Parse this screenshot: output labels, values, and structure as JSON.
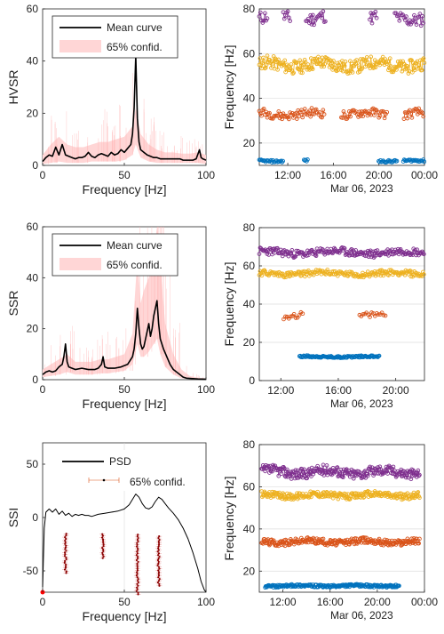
{
  "figure": {
    "date_label": "Mar 06, 2023",
    "colors": {
      "blue": "#0072BD",
      "orange": "#D95319",
      "yellow": "#EDB120",
      "purple": "#7E2F8E",
      "band": "#FFD6D6",
      "spike": "#FFB3B3",
      "dark_red": "#8B0000",
      "black": "#000000"
    }
  },
  "chart_data": [
    {
      "id": "hvsr",
      "type": "line",
      "ylabel": "HVSR",
      "xlabel": "Frequency [Hz]",
      "xlim": [
        0,
        100
      ],
      "ylim": [
        0,
        60
      ],
      "xticks": [
        0,
        50,
        100
      ],
      "yticks": [
        0,
        20,
        40,
        60
      ],
      "legend": {
        "placement": "top-left",
        "entries": [
          "Mean curve",
          "65% confid."
        ]
      },
      "series": [
        {
          "name": "Mean curve",
          "x": [
            0,
            2,
            4,
            6,
            8,
            10,
            12,
            14,
            16,
            18,
            20,
            22,
            24,
            26,
            28,
            30,
            32,
            34,
            36,
            38,
            40,
            42,
            44,
            46,
            48,
            50,
            52,
            54,
            55,
            56,
            57,
            58,
            59,
            60,
            62,
            64,
            66,
            68,
            70,
            72,
            74,
            76,
            78,
            80,
            82,
            84,
            86,
            88,
            90,
            92,
            94,
            96,
            97,
            98,
            100
          ],
          "y": [
            1.5,
            3,
            4,
            3.5,
            7,
            4,
            8,
            4,
            3.5,
            3,
            2.5,
            3,
            3,
            3.5,
            5,
            3.5,
            3,
            4,
            4.5,
            4,
            3.5,
            5,
            4,
            4.5,
            6,
            5,
            6.5,
            8,
            12,
            22,
            42,
            18,
            9,
            6,
            5,
            4,
            3.5,
            3,
            3,
            2.5,
            2.5,
            2.5,
            2.5,
            2.5,
            2.5,
            2.5,
            2,
            2,
            2,
            2,
            2.5,
            6,
            3,
            2.5,
            2
          ]
        },
        {
          "name": "65% confid.",
          "x": [
            0,
            5,
            10,
            15,
            20,
            25,
            30,
            35,
            40,
            45,
            50,
            55,
            57,
            60,
            65,
            70,
            75,
            80,
            85,
            90,
            95,
            100
          ],
          "upper": [
            4,
            8,
            11,
            8,
            7,
            7,
            8,
            9,
            9,
            10,
            11,
            15,
            22,
            12,
            8,
            6,
            5,
            5,
            4.5,
            4.5,
            5,
            4
          ],
          "lower": [
            0.5,
            1,
            1.5,
            1,
            1,
            1,
            1.5,
            1.5,
            1.5,
            1.5,
            2,
            4,
            8,
            3,
            1.5,
            1,
            1,
            1,
            1,
            1,
            1,
            0.5
          ]
        }
      ]
    },
    {
      "id": "ssr",
      "type": "line",
      "ylabel": "SSR",
      "xlabel": "Frequency [Hz]",
      "xlim": [
        0,
        100
      ],
      "ylim": [
        0,
        60
      ],
      "xticks": [
        0,
        50,
        100
      ],
      "yticks": [
        0,
        20,
        40,
        60
      ],
      "legend": {
        "placement": "top-left",
        "entries": [
          "Mean curve",
          "65% confid."
        ]
      },
      "series": [
        {
          "name": "Mean curve",
          "x": [
            0,
            2,
            4,
            6,
            8,
            10,
            12,
            13,
            14,
            15,
            16,
            18,
            20,
            24,
            28,
            32,
            34,
            36,
            37,
            38,
            40,
            44,
            48,
            52,
            55,
            56,
            57,
            58,
            59,
            60,
            61,
            62,
            63,
            64,
            65,
            66,
            67,
            68,
            69,
            70,
            71,
            72,
            74,
            76,
            78,
            80,
            82,
            84,
            86,
            88,
            90,
            95,
            100
          ],
          "y": [
            2,
            3,
            3.5,
            3,
            3.5,
            5,
            6,
            9,
            14,
            7,
            5,
            4.5,
            4,
            4.5,
            4,
            4,
            4.5,
            6,
            9,
            5,
            4.5,
            4.5,
            5,
            6,
            9,
            12,
            18,
            28,
            20,
            14,
            12,
            13,
            16,
            19,
            22,
            17,
            20,
            25,
            28,
            31,
            22,
            16,
            12,
            9,
            6,
            4,
            3,
            2,
            1,
            0.6,
            0.5,
            0.3,
            0.2
          ]
        },
        {
          "name": "65% confid.",
          "x": [
            0,
            5,
            10,
            15,
            20,
            25,
            30,
            35,
            40,
            45,
            50,
            55,
            58,
            60,
            62,
            65,
            68,
            70,
            72,
            75,
            80,
            85,
            90,
            95,
            100
          ],
          "upper": [
            4,
            6,
            8,
            10,
            7,
            7,
            7,
            8,
            8,
            9,
            10,
            18,
            48,
            30,
            35,
            40,
            50,
            60,
            45,
            22,
            10,
            4,
            1.5,
            0.8,
            0.5
          ],
          "lower": [
            1,
            1.5,
            2,
            3,
            2,
            2,
            2,
            2.5,
            2.5,
            3,
            3.5,
            6,
            14,
            9,
            9,
            11,
            14,
            16,
            10,
            5,
            2,
            0.5,
            0.2,
            0.1,
            0.1
          ]
        }
      ]
    },
    {
      "id": "ssi",
      "type": "line",
      "ylabel": "SSI",
      "xlabel": "Frequency [Hz]",
      "xlim": [
        0,
        100
      ],
      "ylim": [
        -70,
        70
      ],
      "xticks": [
        0,
        50,
        100
      ],
      "yticks": [
        -50,
        0,
        50
      ],
      "legend": {
        "placement": "top-center",
        "entries": [
          "PSD",
          "65% confid."
        ]
      },
      "series": [
        {
          "name": "PSD",
          "x": [
            0,
            1,
            2,
            4,
            6,
            8,
            10,
            12,
            14,
            16,
            18,
            20,
            22,
            24,
            26,
            28,
            30,
            34,
            38,
            42,
            46,
            50,
            53,
            55,
            57,
            59,
            61,
            63,
            65,
            67,
            69,
            71,
            73,
            75,
            77,
            80,
            83,
            86,
            89,
            92,
            95,
            97,
            99,
            100
          ],
          "y": [
            -65,
            -10,
            5,
            8,
            5,
            8,
            3,
            6,
            2,
            4,
            1,
            3,
            2,
            3,
            2,
            2,
            1,
            3,
            4,
            5,
            6,
            8,
            12,
            17,
            22,
            19,
            13,
            9,
            8,
            10,
            15,
            19,
            17,
            13,
            9,
            4,
            -2,
            -10,
            -20,
            -33,
            -48,
            -60,
            -68,
            -70
          ]
        },
        {
          "name": "65% confid.",
          "columns": [
            {
              "x": 14,
              "ymin": -52,
              "ymax": -15
            },
            {
              "x": 37,
              "ymin": -38,
              "ymax": -15
            },
            {
              "x": 58,
              "ymin": -72,
              "ymax": -15
            },
            {
              "x": 71,
              "ymin": -64,
              "ymax": -16
            }
          ]
        }
      ]
    },
    {
      "id": "freq1",
      "type": "scatter",
      "ylabel": "Frequency [Hz]",
      "ylim": [
        10,
        80
      ],
      "yticks": [
        20,
        40,
        60,
        80
      ],
      "xlim_hours": [
        9.5,
        24
      ],
      "xticklabels": [
        {
          "hour": 12,
          "label": "12:00"
        },
        {
          "hour": 16,
          "label": "16:00"
        },
        {
          "hour": 20,
          "label": "20:00"
        },
        {
          "hour": 24,
          "label": "00:00"
        }
      ],
      "grid": "horizontal",
      "series": [
        {
          "color": "purple",
          "start": 9.5,
          "end": 24,
          "base": 76,
          "amp": 3,
          "step": 0.1,
          "gaps": [
            [
              10.2,
              11.5
            ],
            [
              12.2,
              13.5
            ],
            [
              15.3,
              19.2
            ],
            [
              19.9,
              21.4
            ]
          ]
        },
        {
          "color": "yellow",
          "start": 9.5,
          "end": 24,
          "base": 55,
          "amp": 3,
          "step": 0.07,
          "gaps": []
        },
        {
          "color": "orange",
          "start": 9.5,
          "end": 24,
          "base": 33,
          "amp": 2,
          "step": 0.1,
          "gaps": [
            [
              15.2,
              16.6
            ],
            [
              20.8,
              22.2
            ]
          ]
        },
        {
          "color": "blue",
          "start": 9.5,
          "end": 24,
          "base": 12,
          "amp": 0.5,
          "step": 0.08,
          "gaps": [
            [
              11.6,
              13.4
            ],
            [
              13.8,
              19.9
            ],
            [
              21.6,
              22.1
            ]
          ]
        }
      ]
    },
    {
      "id": "freq2",
      "type": "scatter",
      "ylabel": "Frequency [Hz]",
      "ylim": [
        0,
        80
      ],
      "yticks": [
        0,
        20,
        40,
        60,
        80
      ],
      "xlim_hours": [
        10.5,
        22
      ],
      "xticklabels": [
        {
          "hour": 12,
          "label": "12:00"
        },
        {
          "hour": 16,
          "label": "16:00"
        },
        {
          "hour": 20,
          "label": "20:00"
        }
      ],
      "grid": "horizontal",
      "series": [
        {
          "color": "purple",
          "start": 10.5,
          "end": 22,
          "base": 67,
          "amp": 2,
          "step": 0.06,
          "gaps": []
        },
        {
          "color": "yellow",
          "start": 10.5,
          "end": 22,
          "base": 56,
          "amp": 1.5,
          "step": 0.06,
          "gaps": []
        },
        {
          "color": "orange",
          "start": 12.2,
          "end": 19.3,
          "base": 34,
          "amp": 1.5,
          "step": 0.12,
          "gaps": [
            [
              13.6,
              17.4
            ]
          ]
        },
        {
          "color": "blue",
          "start": 13.3,
          "end": 18.9,
          "base": 12.5,
          "amp": 0.5,
          "step": 0.05,
          "gaps": []
        }
      ]
    },
    {
      "id": "freq3",
      "type": "scatter",
      "ylabel": "Frequency [Hz]",
      "ylim": [
        10,
        80
      ],
      "yticks": [
        20,
        40,
        60,
        80
      ],
      "xlim_hours": [
        10,
        24
      ],
      "xticklabels": [
        {
          "hour": 12,
          "label": "12:00"
        },
        {
          "hour": 16,
          "label": "16:00"
        },
        {
          "hour": 20,
          "label": "20:00"
        },
        {
          "hour": 24,
          "label": "00:00"
        }
      ],
      "grid": "horizontal",
      "series": [
        {
          "color": "purple",
          "start": 10.2,
          "end": 23.6,
          "base": 67,
          "amp": 2.5,
          "step": 0.06,
          "gaps": []
        },
        {
          "color": "yellow",
          "start": 10.2,
          "end": 23.6,
          "base": 56,
          "amp": 1.5,
          "step": 0.06,
          "gaps": []
        },
        {
          "color": "orange",
          "start": 10.2,
          "end": 23.6,
          "base": 34,
          "amp": 1.5,
          "step": 0.06,
          "gaps": []
        },
        {
          "color": "blue",
          "start": 10.5,
          "end": 21.9,
          "base": 13,
          "amp": 0.6,
          "step": 0.05,
          "gaps": []
        }
      ]
    }
  ]
}
